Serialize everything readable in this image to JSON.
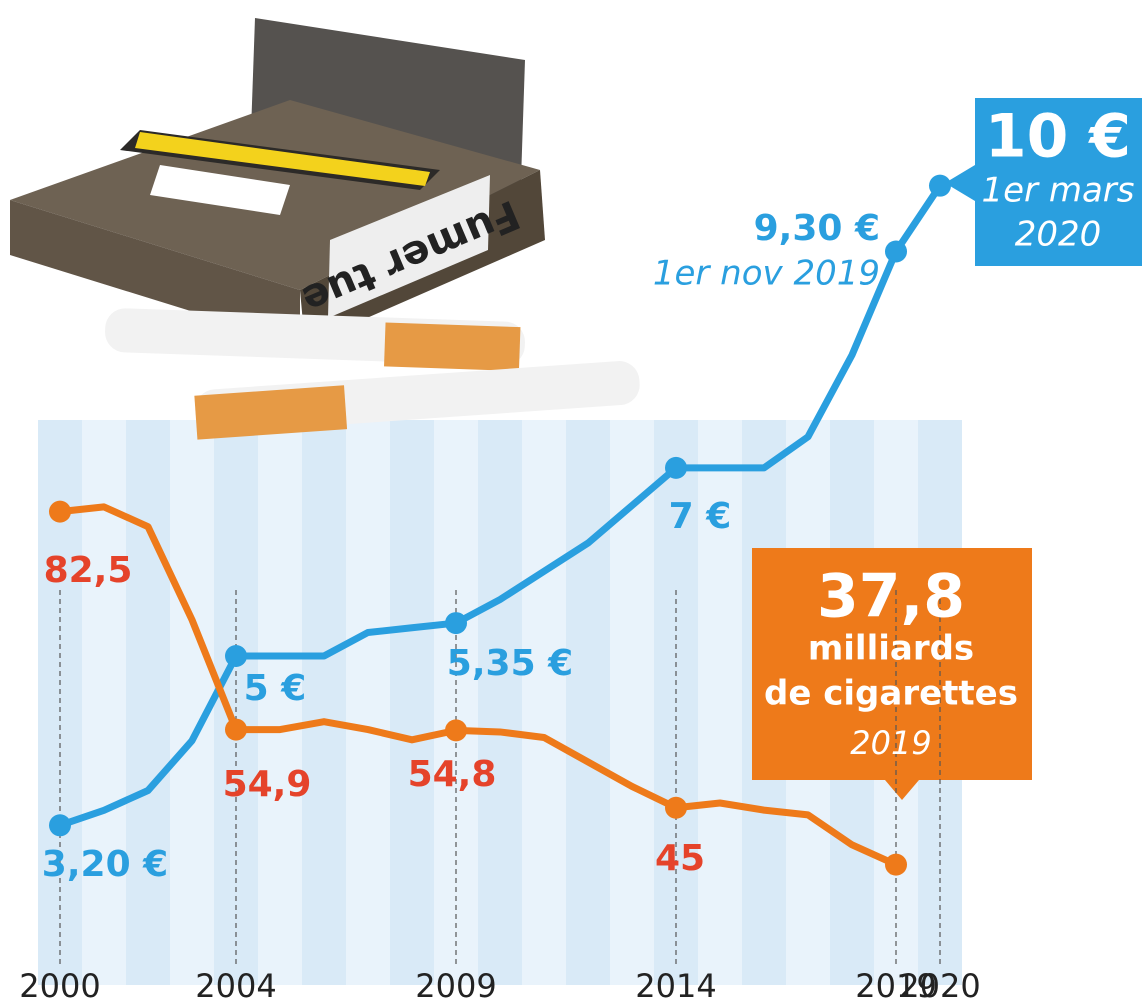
{
  "chart_data": {
    "type": "line",
    "x": [
      2000,
      2001,
      2002,
      2003,
      2004,
      2005,
      2006,
      2007,
      2008,
      2009,
      2010,
      2011,
      2012,
      2013,
      2014,
      2015,
      2016,
      2017,
      2018,
      2019,
      2020
    ],
    "xlim": [
      2000,
      2020
    ],
    "xticks": [
      2000,
      2004,
      2009,
      2014,
      2019,
      2020
    ],
    "ylim": [
      1.8,
      10.9
    ],
    "y2lim": [
      26.1,
      134.5
    ],
    "series": [
      {
        "color": "#2a9fdf",
        "values": [
          3.2,
          3.36,
          3.57,
          4.1,
          5,
          5,
          5,
          5.25,
          5.3,
          5.35,
          5.6,
          5.9,
          6.2,
          6.6,
          7,
          7,
          7,
          7.33,
          8.2,
          9.3,
          10
        ],
        "value_labels": [
          "3,20 €",
          null,
          null,
          null,
          "5 €",
          null,
          null,
          null,
          null,
          "5,35 €",
          null,
          null,
          null,
          null,
          "7 €",
          null,
          null,
          null,
          null,
          "9,30 €",
          "10 €"
        ]
      },
      {
        "color": "#ee7a1a",
        "axis": "y2",
        "values": [
          82.5,
          83.1,
          80.6,
          68.8,
          54.9,
          54.9,
          55.9,
          54.9,
          53.6,
          54.8,
          54.6,
          53.9,
          50.8,
          47.7,
          45,
          45.6,
          44.7,
          44.1,
          40.3,
          37.8,
          null
        ],
        "value_labels": [
          "82,5",
          null,
          null,
          null,
          "54,9",
          null,
          null,
          null,
          null,
          "54,8",
          null,
          null,
          null,
          null,
          "45",
          null,
          null,
          null,
          null,
          "37,8",
          null
        ]
      }
    ],
    "annotations": [
      "1er nov 2019",
      "1er mars",
      "2020",
      "milliards",
      "de cigarettes",
      "2019"
    ]
  }
}
